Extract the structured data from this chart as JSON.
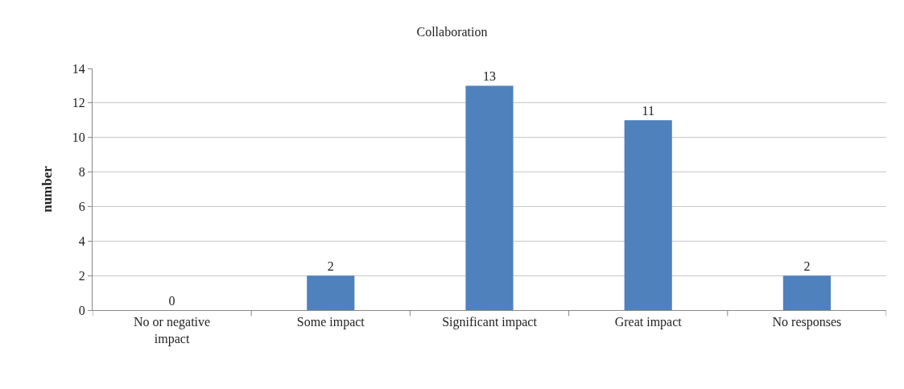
{
  "chart_data": {
    "type": "bar",
    "title": "Collaboration",
    "ylabel": "number",
    "categories": [
      "No or negative impact",
      "Some impact",
      "Significant impact",
      "Great impact",
      "No responses"
    ],
    "values": [
      0,
      2,
      13,
      11,
      2
    ],
    "color": "#4f81bd",
    "ylim": [
      0,
      14
    ],
    "yticks": [
      0,
      2,
      4,
      6,
      8,
      10,
      12,
      14
    ],
    "grid": "y",
    "data_labels": true
  }
}
